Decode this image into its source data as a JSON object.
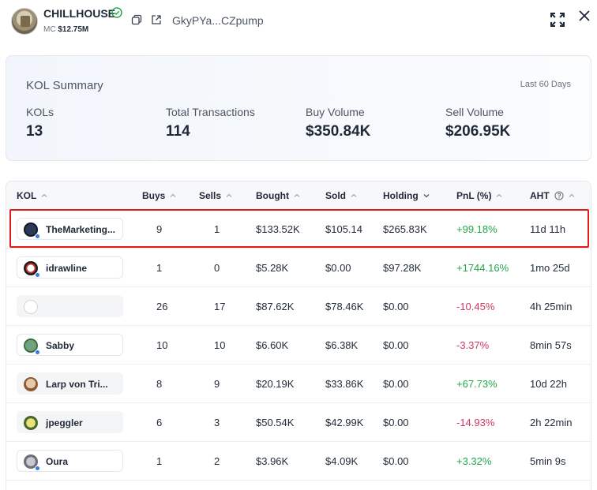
{
  "header": {
    "token_name": "CHILLHOUSE",
    "mc_label": "MC",
    "mc_value": "$12.75M",
    "address": "GkyPYa...CZpump"
  },
  "summary": {
    "title": "KOL Summary",
    "range": "Last 60 Days",
    "stats": [
      {
        "label": "KOLs",
        "value": "13"
      },
      {
        "label": "Total Transactions",
        "value": "114"
      },
      {
        "label": "Buy Volume",
        "value": "$350.84K"
      },
      {
        "label": "Sell Volume",
        "value": "$206.95K"
      }
    ]
  },
  "table": {
    "columns": [
      "KOL",
      "Buys",
      "Sells",
      "Bought",
      "Sold",
      "Holding",
      "PnL (%)",
      "AHT"
    ],
    "rows": [
      {
        "kol": "TheMarketing...",
        "buys": "9",
        "sells": "1",
        "bought": "$133.52K",
        "sold": "$105.14",
        "holding": "$265.83K",
        "pnl": "+99.18%",
        "aht": "11d 11h"
      },
      {
        "kol": "idrawline",
        "buys": "1",
        "sells": "0",
        "bought": "$5.28K",
        "sold": "$0.00",
        "holding": "$97.28K",
        "pnl": "+1744.16%",
        "aht": "1mo 25d"
      },
      {
        "kol": "",
        "buys": "26",
        "sells": "17",
        "bought": "$87.62K",
        "sold": "$78.46K",
        "holding": "$0.00",
        "pnl": "-10.45%",
        "aht": "4h 25min"
      },
      {
        "kol": "Sabby",
        "buys": "10",
        "sells": "10",
        "bought": "$6.60K",
        "sold": "$6.38K",
        "holding": "$0.00",
        "pnl": "-3.37%",
        "aht": "8min 57s"
      },
      {
        "kol": "Larp von Tri...",
        "buys": "8",
        "sells": "9",
        "bought": "$20.19K",
        "sold": "$33.86K",
        "holding": "$0.00",
        "pnl": "+67.73%",
        "aht": "10d 22h"
      },
      {
        "kol": "jpeggler",
        "buys": "6",
        "sells": "3",
        "bought": "$50.54K",
        "sold": "$42.99K",
        "holding": "$0.00",
        "pnl": "-14.93%",
        "aht": "2h 22min"
      },
      {
        "kol": "Oura",
        "buys": "1",
        "sells": "2",
        "bought": "$3.96K",
        "sold": "$4.09K",
        "holding": "$0.00",
        "pnl": "+3.32%",
        "aht": "5min 9s"
      }
    ]
  },
  "colors": {
    "positive": "#22a64a",
    "negative": "#d1375f",
    "highlight": "#e01b1b",
    "online": "#2f7be8"
  }
}
